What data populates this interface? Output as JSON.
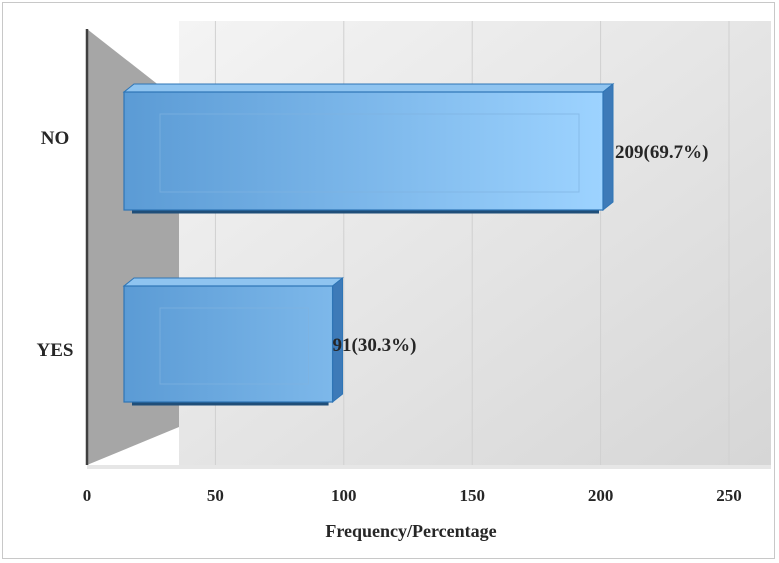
{
  "chart_data": {
    "type": "bar",
    "orientation": "horizontal",
    "style": "3d-clustered",
    "categories": [
      "NO",
      "YES"
    ],
    "values": [
      209,
      91
    ],
    "data_labels": [
      "209(69.7%)",
      "91(30.3%)"
    ],
    "title": "",
    "xlabel": "Frequency/Percentage",
    "ylabel": "",
    "xlim": [
      0,
      250
    ],
    "xticks": [
      "0",
      "50",
      "100",
      "150",
      "200",
      "250"
    ],
    "grid": true,
    "legend": "none",
    "colors": {
      "bar": "#5b9bd5",
      "bar_edge": "#2e75b6",
      "bar_highlight": "#9dd3ff",
      "back_wall_start": "#f4f4f4",
      "back_wall_end": "#d9d9d9",
      "side_wall": "#a6a6a6",
      "gridline": "#d0d0d0"
    }
  }
}
